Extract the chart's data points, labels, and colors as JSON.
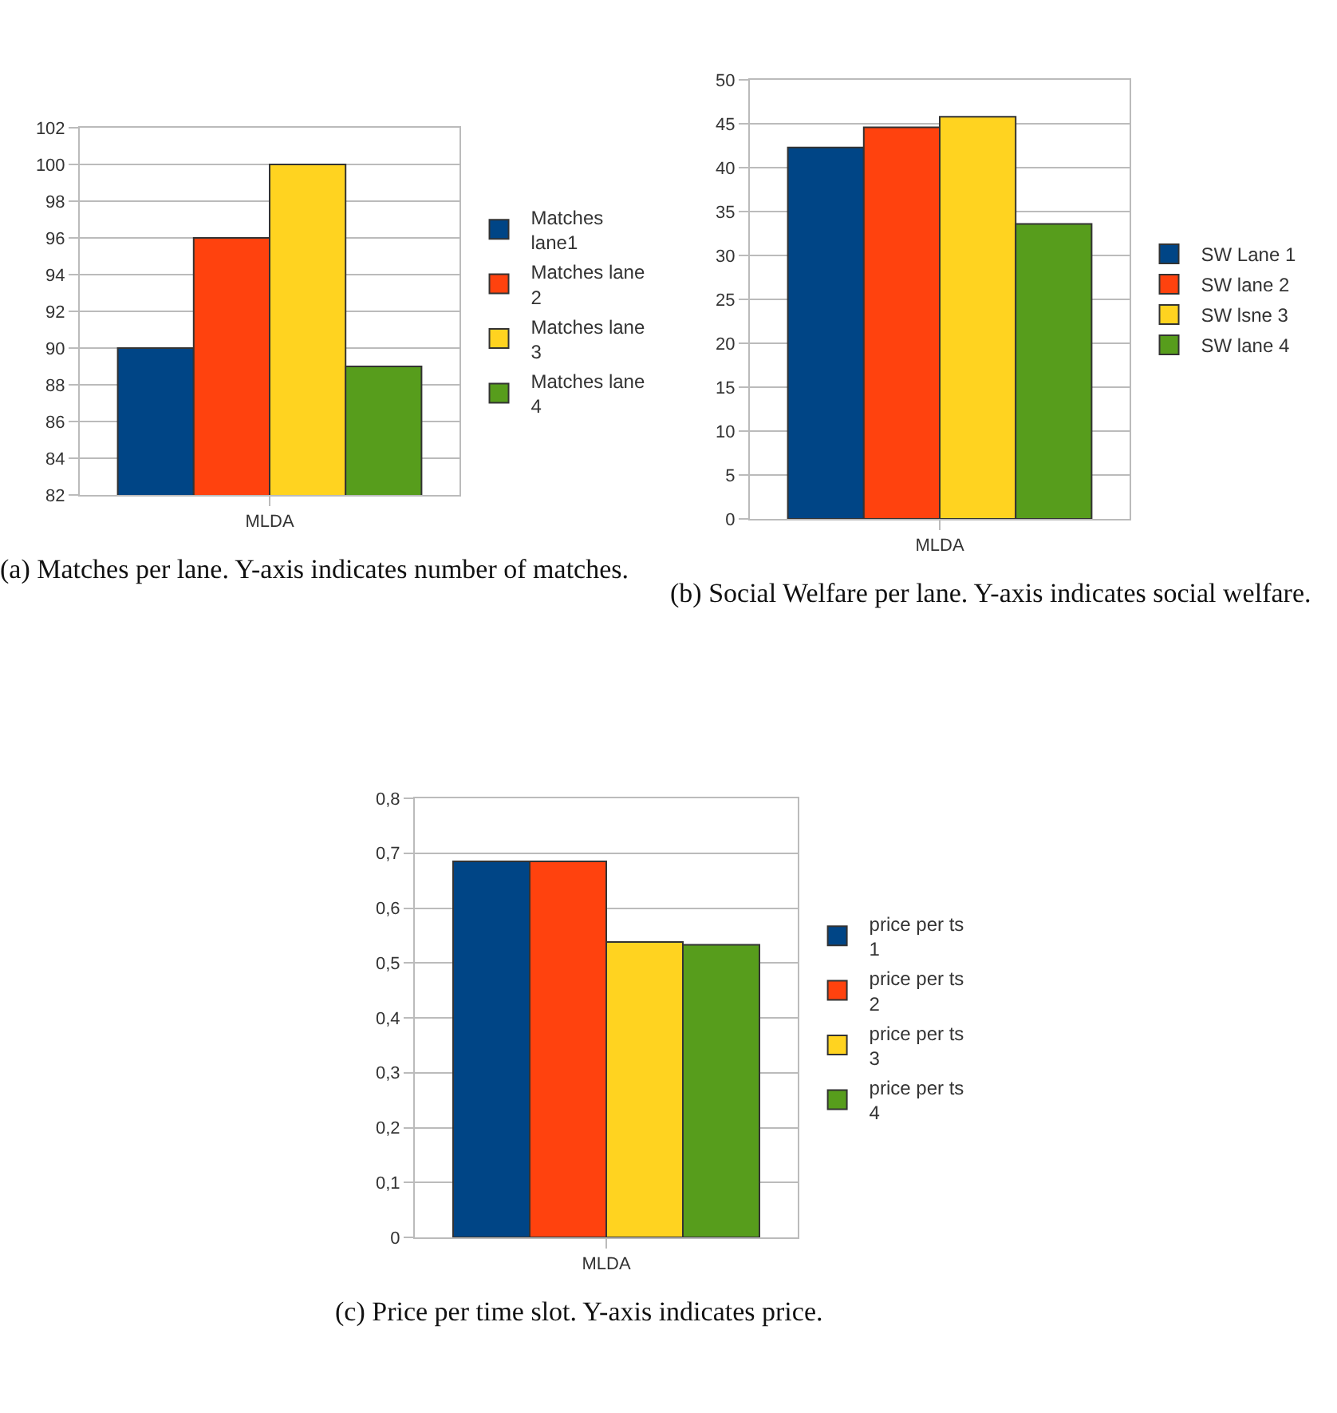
{
  "chart_data": [
    {
      "type": "bar",
      "categories": [
        "MLDA"
      ],
      "ylim": [
        82,
        102
      ],
      "yticks": [
        82,
        84,
        86,
        88,
        90,
        92,
        94,
        96,
        98,
        100,
        102
      ],
      "grid": "y",
      "legend": "right",
      "annotations": [
        "(a) Matches per lane. Y-axis indicates number of matches."
      ],
      "series": [
        {
          "name": "Matches lane1",
          "color": "#004586",
          "values": [
            90
          ]
        },
        {
          "name": "Matches lane 2",
          "color": "#ff420e",
          "values": [
            96
          ]
        },
        {
          "name": "Matches lane 3",
          "color": "#ffd320",
          "values": [
            100
          ]
        },
        {
          "name": "Matches lane 4",
          "color": "#579d1c",
          "values": [
            89
          ]
        }
      ]
    },
    {
      "type": "bar",
      "categories": [
        "MLDA"
      ],
      "ylim": [
        0,
        50
      ],
      "yticks": [
        0,
        5,
        10,
        15,
        20,
        25,
        30,
        35,
        40,
        45,
        50
      ],
      "grid": "y",
      "legend": "right",
      "annotations": [
        "(b) Social Welfare per lane. Y-axis indicates social welfare."
      ],
      "series": [
        {
          "name": "SW Lane 1",
          "color": "#004586",
          "values": [
            42.3
          ]
        },
        {
          "name": "SW lane 2",
          "color": "#ff420e",
          "values": [
            44.6
          ]
        },
        {
          "name": "SW lsne 3",
          "color": "#ffd320",
          "values": [
            45.8
          ]
        },
        {
          "name": "SW lane 4",
          "color": "#579d1c",
          "values": [
            33.6
          ]
        }
      ]
    },
    {
      "type": "bar",
      "categories": [
        "MLDA"
      ],
      "ylim": [
        0,
        0.8
      ],
      "yticks": [
        {
          "value": 0,
          "label": "0"
        },
        {
          "value": 0.1,
          "label": "0,1"
        },
        {
          "value": 0.2,
          "label": "0,2"
        },
        {
          "value": 0.3,
          "label": "0,3"
        },
        {
          "value": 0.4,
          "label": "0,4"
        },
        {
          "value": 0.5,
          "label": "0,5"
        },
        {
          "value": 0.6,
          "label": "0,6"
        },
        {
          "value": 0.7,
          "label": "0,7"
        },
        {
          "value": 0.8,
          "label": "0,8"
        }
      ],
      "grid": "y",
      "legend": "right",
      "annotations": [
        "(c) Price per time slot. Y-axis indicates price."
      ],
      "series": [
        {
          "name": "price per ts 1",
          "color": "#004586",
          "values": [
            0.685
          ]
        },
        {
          "name": "price per ts 2",
          "color": "#ff420e",
          "values": [
            0.685
          ]
        },
        {
          "name": "price per ts 3",
          "color": "#ffd320",
          "values": [
            0.538
          ]
        },
        {
          "name": "price per ts 4",
          "color": "#579d1c",
          "values": [
            0.533
          ]
        }
      ]
    }
  ]
}
